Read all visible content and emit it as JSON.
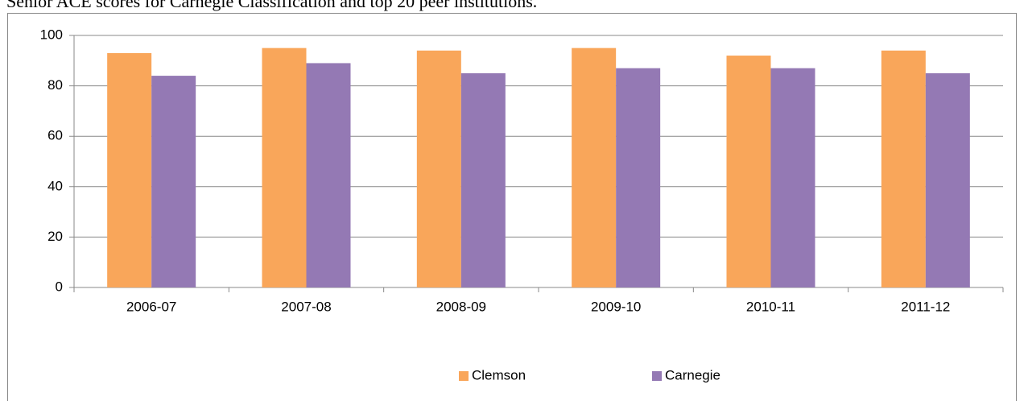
{
  "chart_data": {
    "type": "bar",
    "title": "Senior ACE scores for Carnegie Classification and top 20 peer institutions.",
    "categories": [
      "2006-07",
      "2007-08",
      "2008-09",
      "2009-10",
      "2010-11",
      "2011-12"
    ],
    "series": [
      {
        "name": "Clemson",
        "color": "#f9a65a",
        "values": [
          93,
          95,
          94,
          95,
          92,
          94
        ]
      },
      {
        "name": "Carnegie",
        "color": "#9479b4",
        "values": [
          84,
          89,
          85,
          87,
          87,
          85
        ]
      }
    ],
    "ylim": [
      0,
      100
    ],
    "yticks": [
      0,
      20,
      40,
      60,
      80,
      100
    ],
    "grid": true,
    "legend": "bottom"
  }
}
